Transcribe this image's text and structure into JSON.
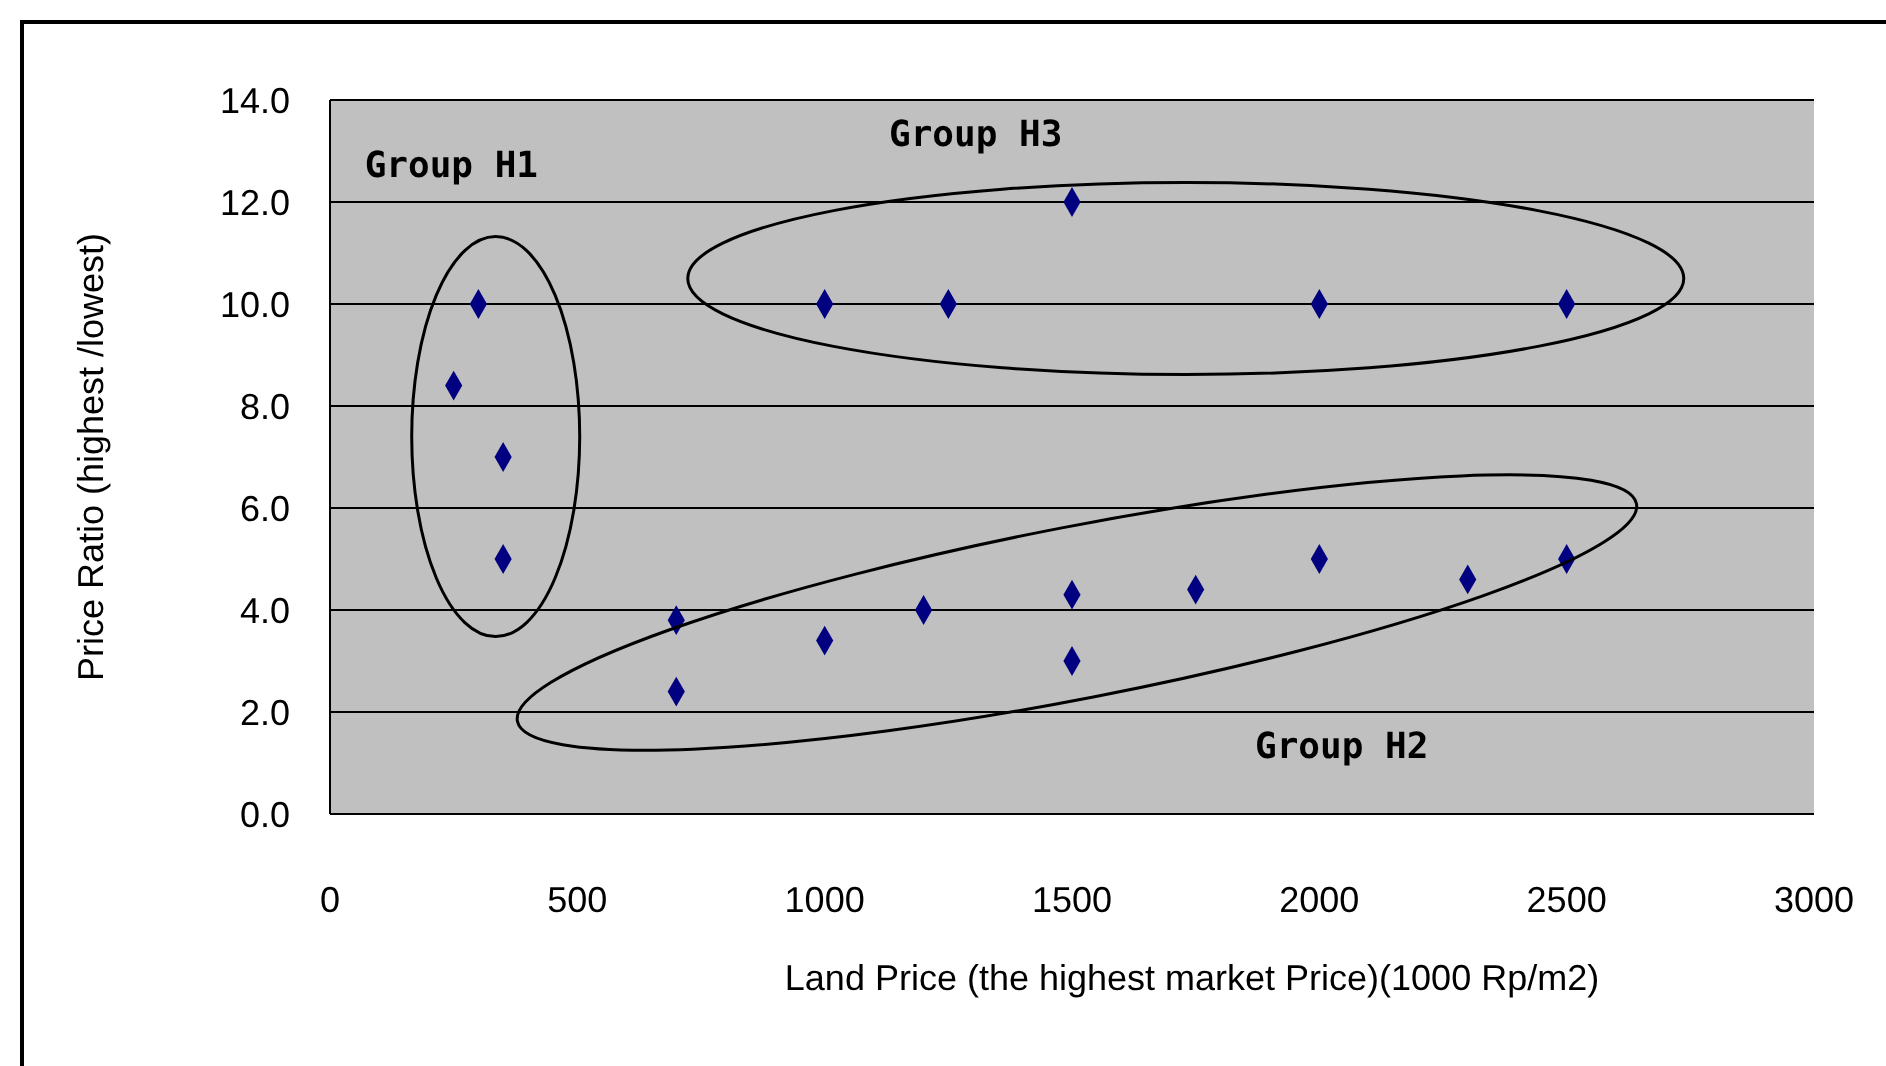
{
  "chart_data": {
    "type": "scatter",
    "xlabel": "Land Price (the highest market Price)(1000 Rp/m2)",
    "ylabel": "Price Ratio (highest /lowest)",
    "x": [
      300,
      250,
      350,
      350,
      700,
      700,
      1000,
      1200,
      1500,
      1500,
      1750,
      2000,
      2300,
      2500,
      1000,
      1250,
      1500,
      2000,
      2500
    ],
    "values": [
      10.0,
      8.4,
      7.0,
      5.0,
      3.8,
      2.4,
      3.4,
      4.0,
      4.3,
      3.0,
      4.4,
      5.0,
      4.6,
      5.0,
      10.0,
      10.0,
      12.0,
      10.0,
      10.0
    ],
    "color": "#000080",
    "marker": "diamond",
    "grid": "y",
    "xlim": [
      0,
      3000
    ],
    "xticks": [
      0,
      500,
      1000,
      1500,
      2000,
      2500,
      3000
    ],
    "ylim": [
      0,
      14
    ],
    "yticks": [
      {
        "value": 0,
        "label": "0.0"
      },
      {
        "value": 2,
        "label": "2.0"
      },
      {
        "value": 4,
        "label": "4.0"
      },
      {
        "value": 6,
        "label": "6.0"
      },
      {
        "value": 8,
        "label": "8.0"
      },
      {
        "value": 10,
        "label": "10.0"
      },
      {
        "value": 12,
        "label": "12.0"
      },
      {
        "value": 14,
        "label": "14.0"
      }
    ],
    "annotations": [
      "Group H1",
      "Group H3",
      "Group H2"
    ]
  }
}
